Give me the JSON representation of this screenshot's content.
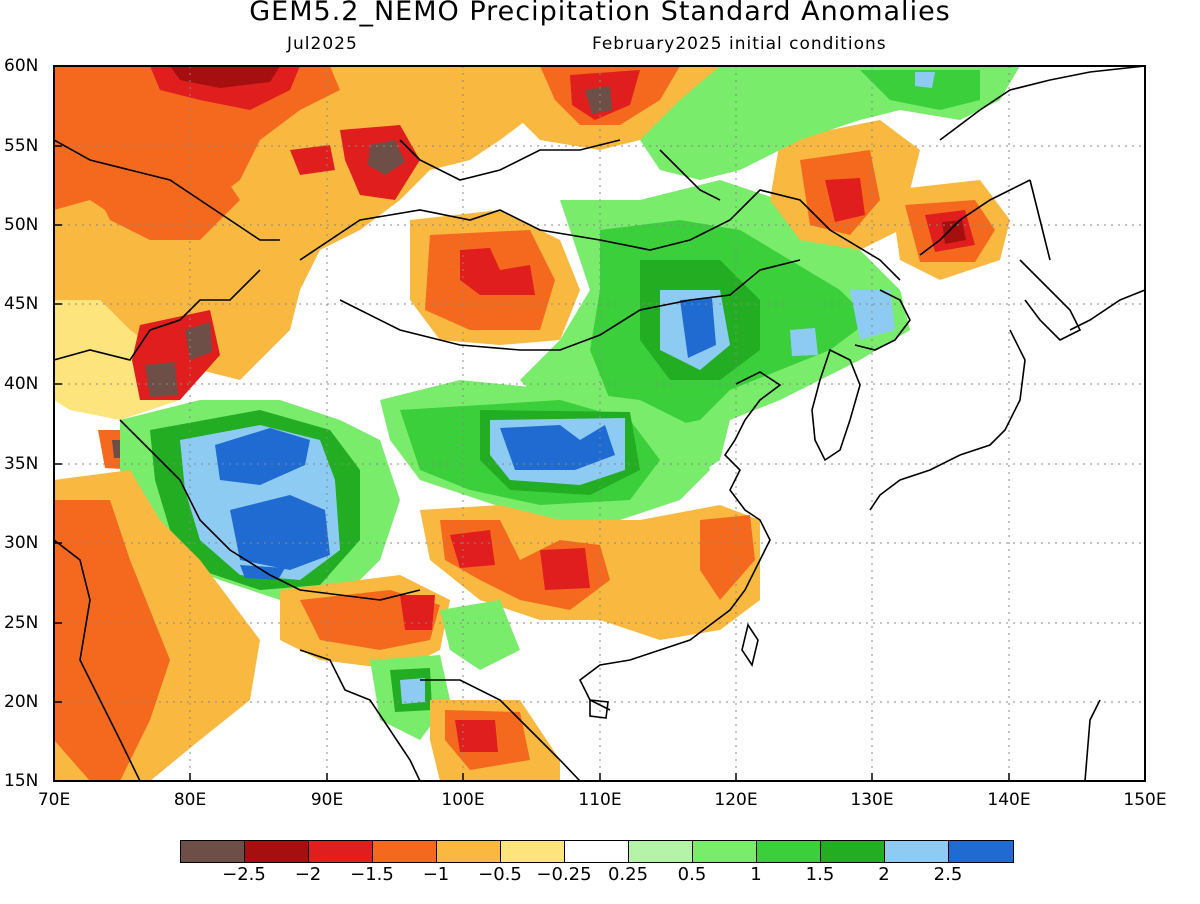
{
  "title": "GEM5.2_NEMO Precipitation Standard Anomalies",
  "subtitle_left": "Jul2025",
  "subtitle_right": "February2025 initial conditions",
  "map": {
    "lon_range": [
      70,
      150
    ],
    "lat_range": [
      15,
      60
    ],
    "lat_labels": [
      "60N",
      "55N",
      "50N",
      "45N",
      "40N",
      "35N",
      "30N",
      "25N",
      "20N",
      "15N"
    ],
    "lon_labels": [
      "70E",
      "80E",
      "90E",
      "100E",
      "110E",
      "120E",
      "130E",
      "140E",
      "150E"
    ],
    "grid": "dotted"
  },
  "colorbar": {
    "colors": [
      "#6e4f48",
      "#a50f0f",
      "#e01e1e",
      "#f5691e",
      "#f9b83f",
      "#fde47c",
      "#ffffff",
      "#b5f3a8",
      "#79ec6b",
      "#3ccf3c",
      "#22ad22",
      "#8ecbf3",
      "#1f6bd1"
    ],
    "labels": [
      "−2.5",
      "−2",
      "−1.5",
      "−1",
      "−0.5",
      "−0.25",
      "0.25",
      "0.5",
      "1",
      "1.5",
      "2",
      "2.5"
    ]
  }
}
